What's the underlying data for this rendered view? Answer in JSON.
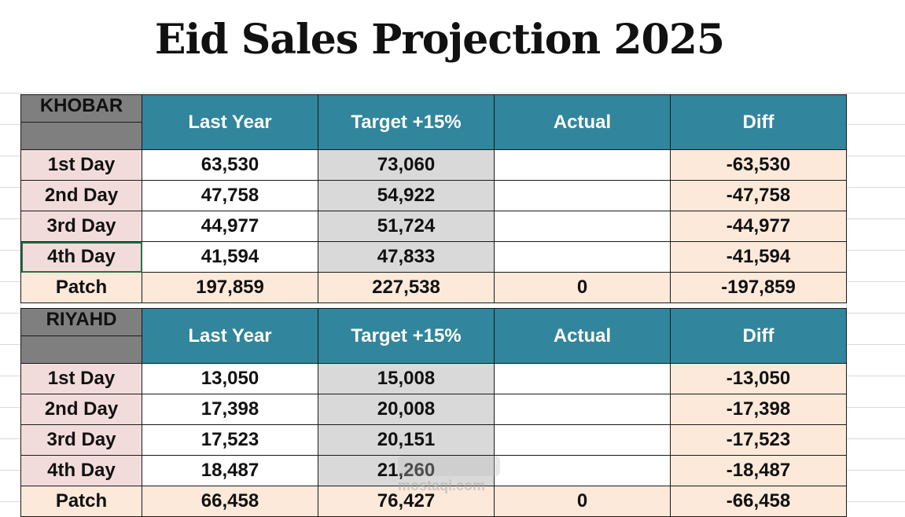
{
  "title": "Eid Sales Projection 2025",
  "columns": [
    "Last Year",
    "Target +15%",
    "Actual",
    "Diff"
  ],
  "tables": [
    {
      "region": "KHOBAR",
      "rows": [
        {
          "label": "1st Day",
          "last_year": "63,530",
          "target": "73,060",
          "actual": "",
          "diff": "-63,530"
        },
        {
          "label": "2nd Day",
          "last_year": "47,758",
          "target": "54,922",
          "actual": "",
          "diff": "-47,758"
        },
        {
          "label": "3rd Day",
          "last_year": "44,977",
          "target": "51,724",
          "actual": "",
          "diff": "-44,977"
        },
        {
          "label": "4th Day",
          "last_year": "41,594",
          "target": "47,833",
          "actual": "",
          "diff": "-41,594"
        }
      ],
      "total": {
        "label": "Patch",
        "last_year": "197,859",
        "target": "227,538",
        "actual": "0",
        "diff": "-197,859"
      }
    },
    {
      "region": "RIYAHD",
      "rows": [
        {
          "label": "1st Day",
          "last_year": "13,050",
          "target": "15,008",
          "actual": "",
          "diff": "-13,050"
        },
        {
          "label": "2nd Day",
          "last_year": "17,398",
          "target": "20,008",
          "actual": "",
          "diff": "-17,398"
        },
        {
          "label": "3rd Day",
          "last_year": "17,523",
          "target": "20,151",
          "actual": "",
          "diff": "-17,523"
        },
        {
          "label": "4th Day",
          "last_year": "18,487",
          "target": "21,260",
          "actual": "",
          "diff": "-18,487"
        }
      ],
      "total": {
        "label": "Patch",
        "last_year": "66,458",
        "target": "76,427",
        "actual": "0",
        "diff": "-66,458"
      }
    }
  ],
  "watermark": "mostaqi.com",
  "colors": {
    "header": "#31859c",
    "region": "#7f7f7f",
    "row_label": "#f2dcdb",
    "target": "#d9d9d9",
    "diff": "#fde9d9"
  }
}
